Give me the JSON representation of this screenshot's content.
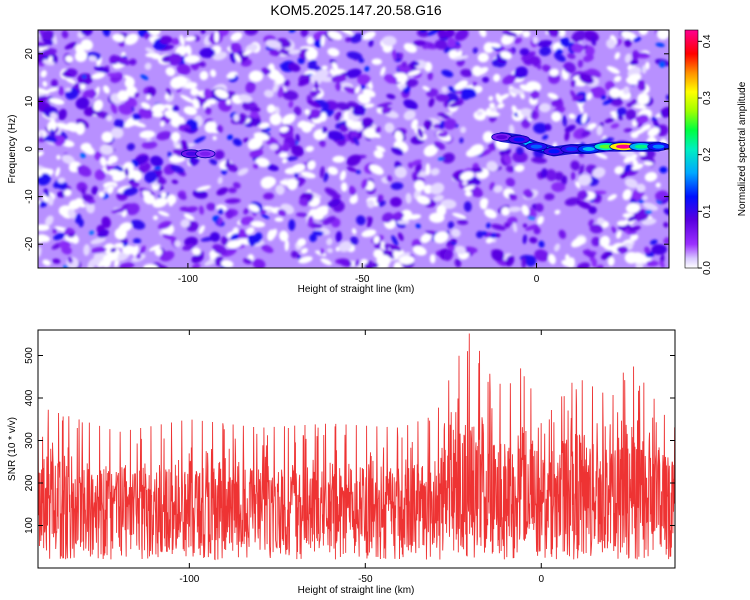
{
  "title": "KOM5.2025.147.20.58.G16",
  "chart_data": [
    {
      "type": "heatmap",
      "xlabel": "Height of straight line (km)",
      "ylabel": "Frequency (Hz)",
      "xlim": [
        -143,
        38
      ],
      "ylim": [
        -25,
        25
      ],
      "x_ticks": [
        -100,
        -50,
        0
      ],
      "y_ticks": [
        -20,
        -10,
        0,
        10,
        20
      ],
      "colorbar": {
        "label": "Normalized spectral amplitude",
        "range": [
          0.0,
          0.42
        ],
        "ticks": [
          0.0,
          0.1,
          0.2,
          0.3,
          0.4
        ],
        "tick_labels": [
          "0.0",
          "0.1",
          "0.2",
          "0.3",
          "0.4"
        ],
        "colors": [
          "#ffffff",
          "#9b30ff",
          "#6a00e8",
          "#0000ff",
          "#00c8ff",
          "#00ff80",
          "#80ff00",
          "#ffff00",
          "#ff8000",
          "#ff0000",
          "#ff00b0"
        ]
      },
      "background_level": 0.03,
      "signal_track": [
        {
          "x": -99,
          "y": -1,
          "v": 0.09
        },
        {
          "x": -95,
          "y": -1,
          "v": 0.06
        },
        {
          "x": -10,
          "y": 2.5,
          "v": 0.08
        },
        {
          "x": -5,
          "y": 2,
          "v": 0.12
        },
        {
          "x": 0,
          "y": 0.5,
          "v": 0.14
        },
        {
          "x": 5,
          "y": -0.5,
          "v": 0.12
        },
        {
          "x": 10,
          "y": 0,
          "v": 0.13
        },
        {
          "x": 15,
          "y": 0,
          "v": 0.17
        },
        {
          "x": 20,
          "y": 0.5,
          "v": 0.26
        },
        {
          "x": 25,
          "y": 0.5,
          "v": 0.42
        },
        {
          "x": 30,
          "y": 0.5,
          "v": 0.22
        },
        {
          "x": 35,
          "y": 0.5,
          "v": 0.15
        }
      ],
      "grid": false,
      "legend": "none"
    },
    {
      "type": "line",
      "xlabel": "Height of straight line (km)",
      "ylabel": "SNR (10 * v/v)",
      "xlim": [
        -143,
        38
      ],
      "ylim": [
        0,
        560
      ],
      "x_ticks": [
        -100,
        -50,
        0
      ],
      "y_ticks": [
        100,
        200,
        300,
        400,
        500
      ],
      "series_color": "#ee3333",
      "baseline_mean": 145,
      "envelope": [
        {
          "x": -143,
          "peak": 380
        },
        {
          "x": -120,
          "peak": 320
        },
        {
          "x": -100,
          "peak": 350
        },
        {
          "x": -80,
          "peak": 330
        },
        {
          "x": -60,
          "peak": 340
        },
        {
          "x": -40,
          "peak": 330
        },
        {
          "x": -30,
          "peak": 360
        },
        {
          "x": -25,
          "peak": 470
        },
        {
          "x": -20,
          "peak": 560
        },
        {
          "x": -15,
          "peak": 460
        },
        {
          "x": -10,
          "peak": 420
        },
        {
          "x": -5,
          "peak": 480
        },
        {
          "x": 0,
          "peak": 340
        },
        {
          "x": 10,
          "peak": 450
        },
        {
          "x": 20,
          "peak": 400
        },
        {
          "x": 25,
          "peak": 490
        },
        {
          "x": 35,
          "peak": 360
        },
        {
          "x": 38,
          "peak": 330
        }
      ],
      "grid": false,
      "legend": "none"
    }
  ]
}
